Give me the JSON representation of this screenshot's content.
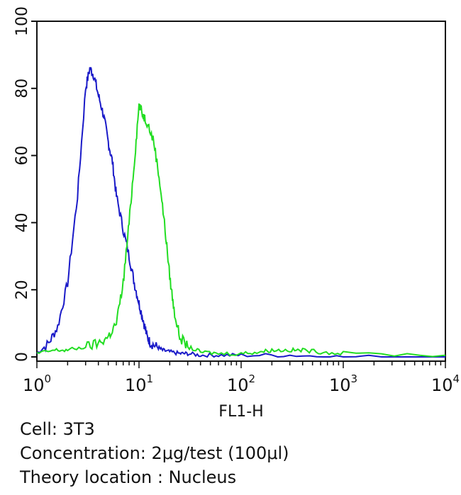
{
  "chart_data": {
    "type": "line",
    "xscale": "log",
    "xlim": [
      1,
      10000
    ],
    "ylim": [
      0,
      100
    ],
    "xlabel": "FL1-H",
    "ylabel": "",
    "x_ticks": [
      {
        "base": "10",
        "exp": "0"
      },
      {
        "base": "10",
        "exp": "1"
      },
      {
        "base": "10",
        "exp": "2"
      },
      {
        "base": "10",
        "exp": "3"
      },
      {
        "base": "10",
        "exp": "4"
      }
    ],
    "y_ticks": [
      "0",
      "20",
      "40",
      "60",
      "80",
      "100"
    ],
    "y_tick_values": [
      0,
      20,
      40,
      60,
      80,
      100
    ],
    "grid": false,
    "series": [
      {
        "color": "#1a1ac8",
        "x": [
          1.0,
          1.3,
          1.6,
          2.0,
          2.5,
          3.0,
          3.3,
          3.6,
          4.0,
          4.5,
          5.0,
          5.5,
          6.0,
          7.0,
          8.0,
          9.0,
          10.0,
          11.0,
          12.0,
          13.0,
          15.0,
          17.0,
          20.0,
          25.0,
          30.0,
          40.0,
          60.0,
          100.0,
          300.0,
          1000.0,
          10000.0
        ],
        "y": [
          1,
          4,
          9,
          22,
          48,
          80,
          86,
          84,
          78,
          72,
          64,
          58,
          48,
          38,
          30,
          22,
          16,
          11,
          6,
          4,
          3,
          2,
          1.5,
          1,
          1,
          0.5,
          0.5,
          0.5,
          0.5,
          0,
          0
        ]
      },
      {
        "color": "#22dd22",
        "x": [
          1.0,
          1.5,
          2.0,
          3.0,
          4.0,
          5.0,
          6.0,
          7.0,
          8.0,
          9.0,
          10.0,
          11.0,
          12.0,
          14.0,
          16.0,
          18.0,
          20.0,
          22.0,
          25.0,
          30.0,
          40.0,
          60.0,
          100.0,
          150.0,
          200.0,
          300.0,
          400.0,
          600.0,
          1000.0,
          10000.0
        ],
        "y": [
          1,
          2,
          2,
          3,
          4,
          6,
          10,
          22,
          40,
          58,
          75,
          72,
          70,
          64,
          52,
          38,
          24,
          14,
          6,
          3,
          1.5,
          1,
          1,
          1.5,
          2,
          2,
          2,
          1.5,
          1,
          0.5
        ]
      }
    ]
  },
  "caption": {
    "cell": "Cell: 3T3",
    "concentration": "Concentration: 2μg/test (100μl)",
    "location": "Theory location : Nucleus"
  }
}
